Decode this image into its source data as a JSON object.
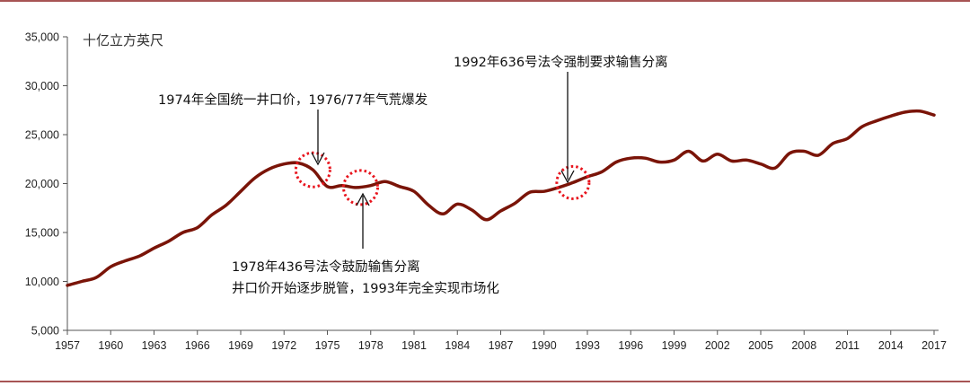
{
  "chart_data": {
    "type": "line",
    "unit_label": "十亿立方英尺",
    "ylim": [
      5000,
      35000
    ],
    "y_ticks": [
      "5,000",
      "10,000",
      "15,000",
      "20,000",
      "25,000",
      "30,000",
      "35,000"
    ],
    "xlim": [
      1957,
      2017
    ],
    "x_ticks": [
      "1957",
      "1960",
      "1963",
      "1966",
      "1969",
      "1972",
      "1975",
      "1978",
      "1981",
      "1984",
      "1987",
      "1990",
      "1993",
      "1996",
      "1999",
      "2002",
      "2005",
      "2008",
      "2011",
      "2014",
      "2017"
    ],
    "grid": false,
    "colors": {
      "line": "#7a1408",
      "frame": "#8a1c1c",
      "marker": "#e8141d",
      "axis": "#555555"
    },
    "series": [
      {
        "x": [
          1957,
          1958,
          1959,
          1960,
          1961,
          1962,
          1963,
          1964,
          1965,
          1966,
          1967,
          1968,
          1969,
          1970,
          1971,
          1972,
          1973,
          1974,
          1975,
          1976,
          1977,
          1978,
          1979,
          1980,
          1981,
          1982,
          1983,
          1984,
          1985,
          1986,
          1987,
          1988,
          1989,
          1990,
          1991,
          1992,
          1993,
          1994,
          1995,
          1996,
          1997,
          1998,
          1999,
          2000,
          2001,
          2002,
          2003,
          2004,
          2005,
          2006,
          2007,
          2008,
          2009,
          2010,
          2011,
          2012,
          2013,
          2014,
          2015,
          2016,
          2017
        ],
        "values": [
          9600,
          10000,
          10400,
          11500,
          12100,
          12600,
          13400,
          14100,
          15000,
          15500,
          16800,
          17800,
          19200,
          20600,
          21500,
          22000,
          22100,
          21400,
          19700,
          19800,
          19600,
          19800,
          20200,
          19700,
          19200,
          17800,
          16900,
          17900,
          17300,
          16300,
          17200,
          18000,
          19100,
          19200,
          19600,
          20100,
          20700,
          21200,
          22200,
          22600,
          22600,
          22200,
          22400,
          23300,
          22300,
          23000,
          22300,
          22400,
          22000,
          21600,
          23100,
          23300,
          22900,
          24100,
          24600,
          25800,
          26400,
          26900,
          27300,
          27400,
          27000
        ]
      }
    ],
    "annotations": [
      {
        "text": "1974年全国统一井口价，1976/77年气荒爆发",
        "point": {
          "x": 1974,
          "y": 21400
        }
      },
      {
        "text": "1978年436号法令鼓励输售分离",
        "text2": "井口价开始逐步脱管，1993年完全实现市场化",
        "point": {
          "x": 1977.3,
          "y": 19600
        }
      },
      {
        "text": "1992年636号法令强制要求输售分离",
        "point": {
          "x": 1992,
          "y": 20100
        }
      }
    ]
  }
}
